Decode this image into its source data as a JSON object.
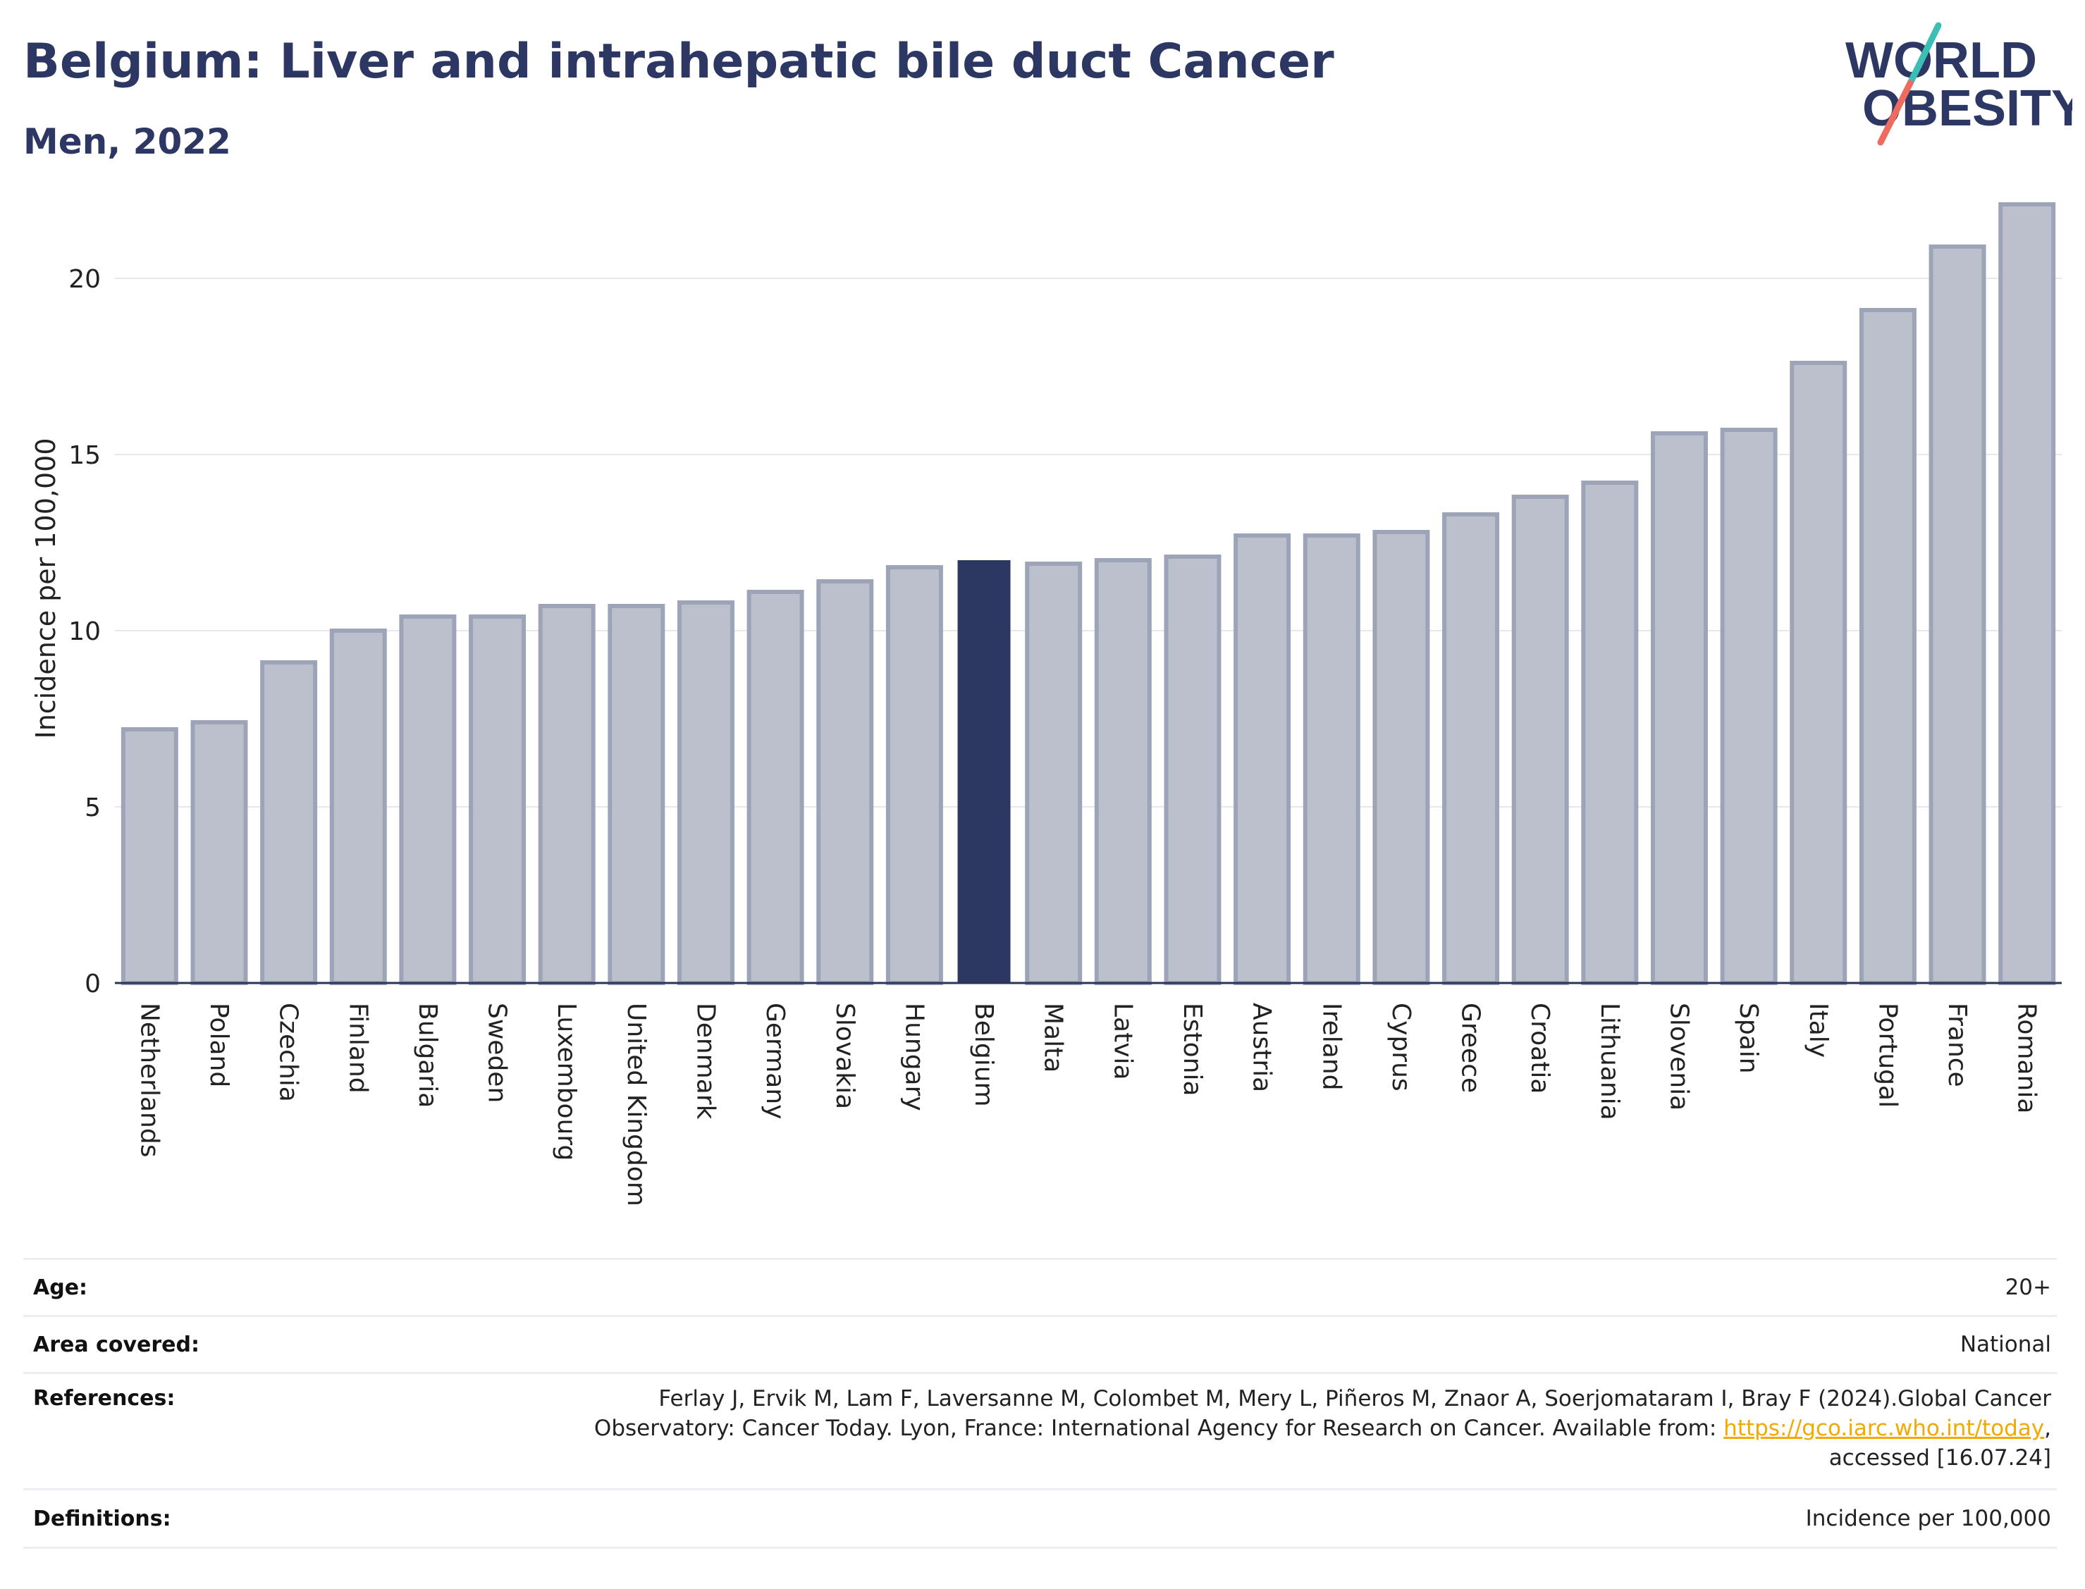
{
  "header": {
    "title": "Belgium: Liver and intrahepatic bile duct Cancer",
    "subtitle": "Men, 2022"
  },
  "logo": {
    "line1": "WORLD",
    "line2": "OBESITY"
  },
  "chart_data": {
    "type": "bar",
    "title": "Belgium: Liver and intrahepatic bile duct Cancer",
    "subtitle": "Men, 2022",
    "ylabel": "Incidence per 100,000",
    "xlabel": "",
    "ylim": [
      0,
      22.5
    ],
    "yticks": [
      0,
      5,
      10,
      15,
      20
    ],
    "grid": true,
    "highlight": "Belgium",
    "colors": {
      "highlight": "#2c3762",
      "default": "#bcc0cd",
      "default_border": "#9ea4b8",
      "axis": "#2a3456",
      "grid": "#e6e8ee"
    },
    "categories": [
      "Netherlands",
      "Poland",
      "Czechia",
      "Finland",
      "Bulgaria",
      "Sweden",
      "Luxembourg",
      "United Kingdom",
      "Denmark",
      "Germany",
      "Slovakia",
      "Hungary",
      "Belgium",
      "Malta",
      "Latvia",
      "Estonia",
      "Austria",
      "Ireland",
      "Cyprus",
      "Greece",
      "Croatia",
      "Lithuania",
      "Slovenia",
      "Spain",
      "Italy",
      "Portugal",
      "France",
      "Romania"
    ],
    "values": [
      7.2,
      7.4,
      9.1,
      10.0,
      10.4,
      10.4,
      10.7,
      10.7,
      10.8,
      11.1,
      11.4,
      11.8,
      12.0,
      11.9,
      12.0,
      12.1,
      12.7,
      12.7,
      12.8,
      13.3,
      13.8,
      14.2,
      15.6,
      15.7,
      17.6,
      19.1,
      20.9,
      22.1
    ]
  },
  "meta": {
    "age_label": "Age:",
    "age_value": "20+",
    "area_label": "Area covered:",
    "area_value": "National",
    "references_label": "References:",
    "references_line1": "Ferlay J, Ervik M, Lam F, Laversanne M, Colombet M, Mery L, Piñeros M, Znaor A, Soerjomataram I, Bray F (2024).Global Cancer",
    "references_line2": "Observatory: Cancer Today. Lyon, France: International Agency for Research on Cancer. Available from:",
    "references_link": "https://gco.iarc.who.int/today",
    "references_line3": "accessed [16.07.24]",
    "definitions_label": "Definitions:",
    "definitions_value": "Incidence per 100,000"
  }
}
